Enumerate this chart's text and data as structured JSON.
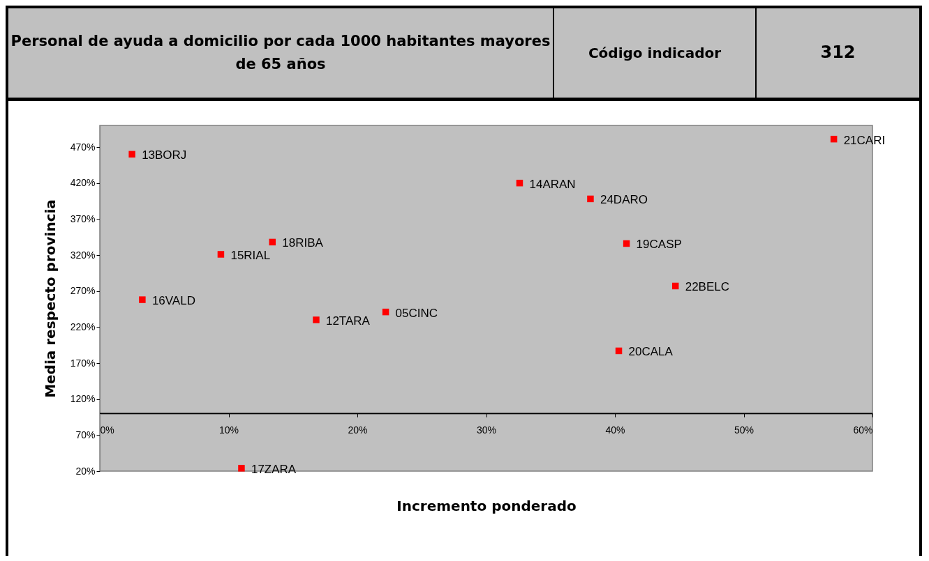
{
  "chart_data": {
    "type": "scatter",
    "title": "Personal de ayuda a domicilio por cada 1000 habitantes mayores de 65 años",
    "xlabel": "Incremento ponderado",
    "ylabel": "Media respecto provincia",
    "x": [
      2.5,
      3.3,
      9.4,
      13.4,
      16.8,
      22.2,
      32.6,
      38.1,
      40.9,
      44.7,
      40.3,
      57.0,
      11.0
    ],
    "series": [
      {
        "color": "#ff0000",
        "values": [
          460,
          258,
          321,
          338,
          230,
          241,
          420,
          398,
          336,
          277,
          187,
          481,
          24
        ]
      }
    ],
    "marker": "square",
    "grid": false,
    "legend": false,
    "xlim": [
      0,
      60
    ],
    "ylim": [
      20,
      500
    ],
    "xticks": [
      {
        "value": 0,
        "label": "0%"
      },
      {
        "value": 10,
        "label": "10%"
      },
      {
        "value": 20,
        "label": "20%"
      },
      {
        "value": 30,
        "label": "30%"
      },
      {
        "value": 40,
        "label": "40%"
      },
      {
        "value": 50,
        "label": "50%"
      },
      {
        "value": 60,
        "label": "60%"
      }
    ],
    "yticks": [
      {
        "value": 20,
        "label": "20%"
      },
      {
        "value": 70,
        "label": "70%"
      },
      {
        "value": 120,
        "label": "120%"
      },
      {
        "value": 170,
        "label": "170%"
      },
      {
        "value": 220,
        "label": "220%"
      },
      {
        "value": 270,
        "label": "270%"
      },
      {
        "value": 320,
        "label": "320%"
      },
      {
        "value": 370,
        "label": "370%"
      },
      {
        "value": 420,
        "label": "420%"
      },
      {
        "value": 470,
        "label": "470%"
      }
    ],
    "ref_lines": [
      {
        "axis": "y",
        "value": 100,
        "label": null
      }
    ],
    "annotations": [
      "Código indicador",
      "312",
      {
        "text": "13BORJ",
        "x": 2.5,
        "y": 460
      },
      {
        "text": "16VALD",
        "x": 3.3,
        "y": 258
      },
      {
        "text": "15RIAL",
        "x": 9.4,
        "y": 321
      },
      {
        "text": "18RIBA",
        "x": 13.4,
        "y": 338
      },
      {
        "text": "12TARA",
        "x": 16.8,
        "y": 230
      },
      {
        "text": "05CINC",
        "x": 22.2,
        "y": 241
      },
      {
        "text": "14ARAN",
        "x": 32.6,
        "y": 420
      },
      {
        "text": "24DARO",
        "x": 38.1,
        "y": 398
      },
      {
        "text": "19CASP",
        "x": 40.9,
        "y": 336
      },
      {
        "text": "22BELC",
        "x": 44.7,
        "y": 277
      },
      {
        "text": "20CALA",
        "x": 40.3,
        "y": 187
      },
      {
        "text": "21CARI",
        "x": 57.0,
        "y": 481
      },
      {
        "text": "17ZARA",
        "x": 11.0,
        "y": 24
      }
    ]
  }
}
